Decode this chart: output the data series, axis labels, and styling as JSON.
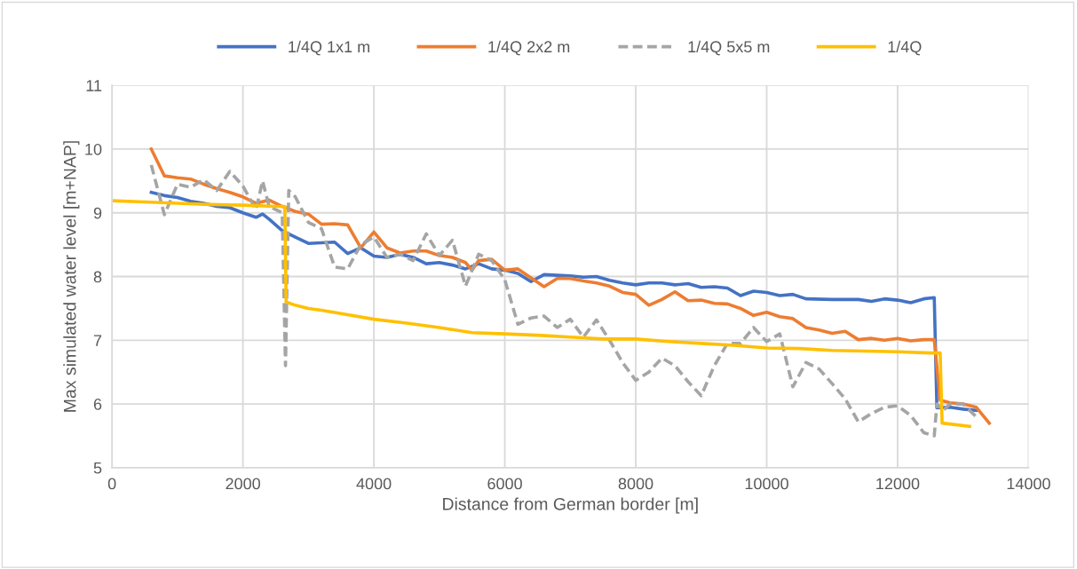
{
  "chart_data": {
    "type": "line",
    "xlabel": "Distance from German border [m]",
    "ylabel": "Max simulated water level [m+NAP]",
    "xlim": [
      0,
      14000
    ],
    "xticks": [
      0,
      2000,
      4000,
      6000,
      8000,
      10000,
      12000,
      14000
    ],
    "ylim": [
      5,
      11
    ],
    "yticks": [
      5,
      6,
      7,
      8,
      9,
      10,
      11
    ],
    "grid": true,
    "legend": "top",
    "marker": "none",
    "series": [
      {
        "name": "1/4Q 1x1 m",
        "color": "#4472c4",
        "line_style": "solid",
        "x": [
          600,
          800,
          1000,
          1200,
          1400,
          1600,
          1800,
          2000,
          2200,
          2300,
          2400,
          2600,
          2800,
          3000,
          3200,
          3400,
          3600,
          3800,
          4000,
          4200,
          4400,
          4600,
          4800,
          5000,
          5200,
          5400,
          5600,
          5800,
          6000,
          6200,
          6400,
          6600,
          6800,
          7000,
          7200,
          7400,
          7600,
          7800,
          8000,
          8200,
          8400,
          8600,
          8800,
          9000,
          9200,
          9400,
          9600,
          9800,
          10000,
          10200,
          10400,
          10600,
          11000,
          11400,
          11600,
          11800,
          12000,
          12200,
          12400,
          12560,
          12600,
          12800,
          13000,
          13200
        ],
        "values": [
          9.32,
          9.27,
          9.24,
          9.18,
          9.15,
          9.1,
          9.08,
          9.0,
          8.93,
          8.98,
          8.9,
          8.72,
          8.62,
          8.52,
          8.53,
          8.54,
          8.36,
          8.45,
          8.32,
          8.3,
          8.35,
          8.3,
          8.2,
          8.22,
          8.18,
          8.12,
          8.2,
          8.12,
          8.1,
          8.05,
          7.92,
          8.03,
          8.02,
          8.01,
          7.99,
          8.0,
          7.94,
          7.9,
          7.87,
          7.9,
          7.9,
          7.87,
          7.89,
          7.83,
          7.84,
          7.82,
          7.7,
          7.77,
          7.75,
          7.7,
          7.72,
          7.65,
          7.64,
          7.64,
          7.61,
          7.65,
          7.63,
          7.59,
          7.65,
          7.67,
          5.94,
          5.95,
          5.92,
          5.9
        ]
      },
      {
        "name": "1/4Q 2x2 m",
        "color": "#ed7d31",
        "line_style": "solid",
        "x": [
          600,
          800,
          1000,
          1200,
          1400,
          1600,
          1800,
          2000,
          2200,
          2400,
          2600,
          2800,
          3000,
          3200,
          3400,
          3600,
          3800,
          4000,
          4200,
          4400,
          4600,
          4800,
          5000,
          5200,
          5400,
          5500,
          5600,
          5800,
          6000,
          6200,
          6400,
          6600,
          6800,
          7000,
          7200,
          7400,
          7600,
          7800,
          8000,
          8200,
          8400,
          8600,
          8800,
          9000,
          9200,
          9400,
          9600,
          9800,
          10000,
          10200,
          10400,
          10600,
          10800,
          11000,
          11200,
          11400,
          11600,
          11800,
          12000,
          12200,
          12400,
          12560,
          12650,
          12800,
          13000,
          13200,
          13400
        ],
        "values": [
          10.0,
          9.58,
          9.55,
          9.53,
          9.45,
          9.38,
          9.32,
          9.25,
          9.15,
          9.2,
          9.1,
          9.02,
          8.98,
          8.82,
          8.83,
          8.81,
          8.45,
          8.7,
          8.45,
          8.37,
          8.4,
          8.4,
          8.33,
          8.3,
          8.22,
          8.1,
          8.25,
          8.27,
          8.1,
          8.12,
          7.98,
          7.84,
          7.97,
          7.97,
          7.93,
          7.9,
          7.85,
          7.75,
          7.72,
          7.55,
          7.64,
          7.76,
          7.62,
          7.63,
          7.58,
          7.57,
          7.5,
          7.39,
          7.44,
          7.37,
          7.34,
          7.2,
          7.16,
          7.11,
          7.14,
          7.01,
          7.03,
          7.0,
          7.03,
          6.99,
          7.01,
          7.01,
          6.06,
          6.02,
          6.0,
          5.95,
          5.7
        ]
      },
      {
        "name": "1/4Q 5x5 m",
        "color": "#a5a5a5",
        "line_style": "dashed",
        "x": [
          600,
          800,
          1000,
          1200,
          1400,
          1600,
          1800,
          2000,
          2200,
          2300,
          2400,
          2600,
          2650,
          2700,
          2800,
          3000,
          3200,
          3400,
          3600,
          3800,
          4000,
          4200,
          4400,
          4600,
          4800,
          5000,
          5200,
          5400,
          5600,
          5800,
          6000,
          6200,
          6400,
          6600,
          6800,
          7000,
          7200,
          7400,
          7600,
          7800,
          8000,
          8200,
          8400,
          8600,
          8800,
          9000,
          9200,
          9400,
          9600,
          9800,
          10000,
          10200,
          10400,
          10600,
          10800,
          11000,
          11200,
          11400,
          11600,
          11800,
          12000,
          12200,
          12400,
          12560,
          12600,
          12700,
          12800,
          13000,
          13200
        ],
        "values": [
          9.75,
          8.97,
          9.45,
          9.4,
          9.52,
          9.35,
          9.65,
          9.42,
          9.05,
          9.5,
          9.1,
          9.0,
          6.6,
          9.35,
          9.25,
          8.85,
          8.75,
          8.15,
          8.12,
          8.5,
          8.62,
          8.3,
          8.35,
          8.25,
          8.67,
          8.33,
          8.57,
          7.85,
          8.35,
          8.25,
          7.95,
          7.25,
          7.35,
          7.38,
          7.2,
          7.33,
          7.05,
          7.32,
          7.0,
          6.65,
          6.37,
          6.5,
          6.72,
          6.6,
          6.35,
          6.13,
          6.6,
          6.95,
          6.95,
          7.2,
          6.98,
          7.1,
          6.27,
          6.65,
          6.55,
          6.32,
          6.08,
          5.72,
          5.85,
          5.95,
          5.97,
          5.82,
          5.55,
          5.5,
          6.0,
          5.9,
          6.0,
          6.0,
          5.8
        ]
      },
      {
        "name": "1/4Q",
        "color": "#ffc000",
        "line_style": "solid",
        "x": [
          0,
          500,
          1000,
          1500,
          2000,
          2500,
          2640,
          2660,
          2800,
          3000,
          3200,
          3500,
          4000,
          4500,
          5000,
          5500,
          6000,
          6500,
          7000,
          7500,
          8000,
          8500,
          9000,
          9500,
          10000,
          10500,
          11000,
          11500,
          12000,
          12500,
          12650,
          12680,
          13100
        ],
        "values": [
          9.19,
          9.17,
          9.15,
          9.13,
          9.12,
          9.1,
          9.1,
          7.6,
          7.55,
          7.5,
          7.47,
          7.42,
          7.33,
          7.27,
          7.2,
          7.12,
          7.1,
          7.08,
          7.05,
          7.02,
          7.02,
          6.98,
          6.95,
          6.92,
          6.88,
          6.87,
          6.84,
          6.83,
          6.82,
          6.8,
          6.8,
          5.7,
          5.65
        ]
      }
    ]
  }
}
